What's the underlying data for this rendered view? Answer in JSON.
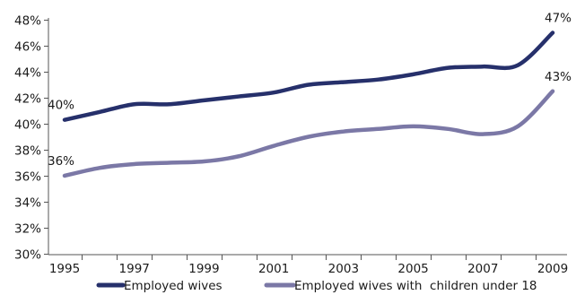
{
  "chart_data": {
    "type": "line",
    "x": [
      1995,
      1996,
      1997,
      1998,
      1999,
      2000,
      2001,
      2002,
      2003,
      2004,
      2005,
      2006,
      2007,
      2008,
      2009
    ],
    "x_tick_labels": [
      "1995",
      "1997",
      "1999",
      "2001",
      "2003",
      "2005",
      "2007",
      "2009"
    ],
    "ylim": [
      0.3,
      0.48
    ],
    "y_tick_labels": [
      "30%",
      "32%",
      "34%",
      "36%",
      "38%",
      "40%",
      "42%",
      "44%",
      "46%",
      "48%"
    ],
    "y_ticks": [
      0.3,
      0.32,
      0.34,
      0.36,
      0.38,
      0.4,
      0.42,
      0.44,
      0.46,
      0.48
    ],
    "grid": false,
    "legend_position": "bottom",
    "series": [
      {
        "name": "Employed wives",
        "color": "#26306b",
        "values": [
          0.403,
          0.409,
          0.415,
          0.415,
          0.418,
          0.421,
          0.424,
          0.43,
          0.432,
          0.434,
          0.438,
          0.443,
          0.444,
          0.445,
          0.47
        ],
        "start_label": "40%",
        "end_label": "47%"
      },
      {
        "name": "Employed wives with  children under 18",
        "color": "#7b78a6",
        "values": [
          0.36,
          0.366,
          0.369,
          0.37,
          0.371,
          0.375,
          0.383,
          0.39,
          0.394,
          0.396,
          0.398,
          0.396,
          0.392,
          0.398,
          0.425
        ],
        "start_label": "36%",
        "end_label": "43%"
      }
    ]
  }
}
